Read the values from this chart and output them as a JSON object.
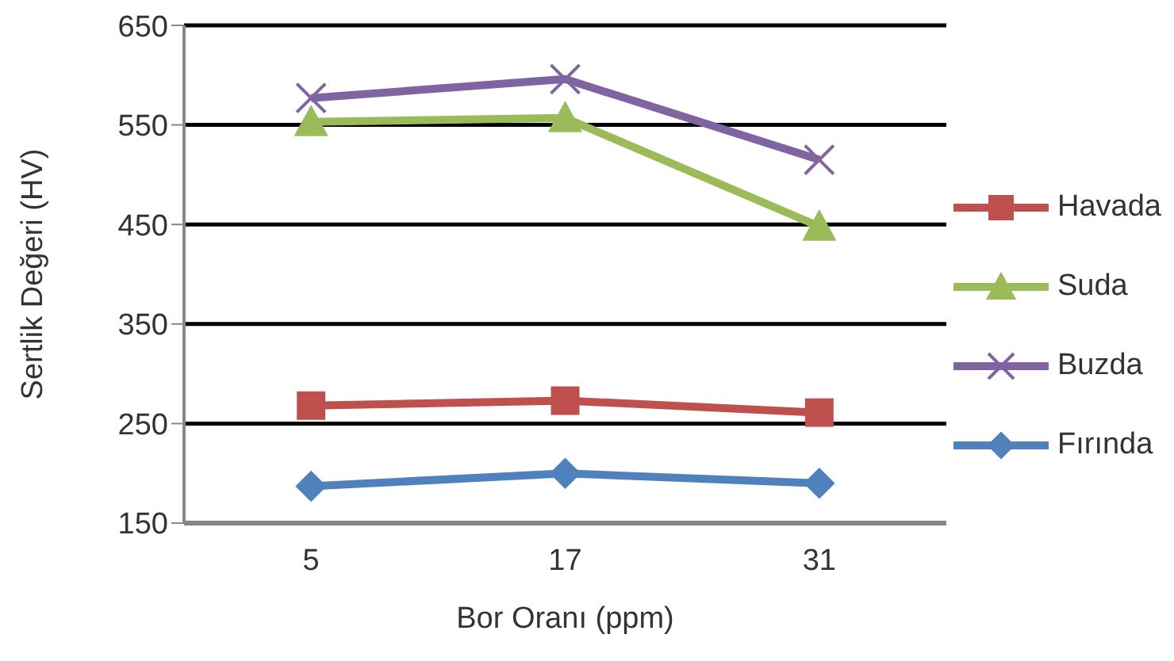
{
  "chart_data": {
    "type": "line",
    "xlabel": "Bor Oranı (ppm)",
    "ylabel": "Sertlik Değeri (HV)",
    "categories": [
      "5",
      "17",
      "31"
    ],
    "ylim": [
      150,
      650
    ],
    "yticks": [
      150,
      250,
      350,
      450,
      550,
      650
    ],
    "grid": "y",
    "legend": "right",
    "series": [
      {
        "name": "Havada",
        "color": "#c0504d",
        "marker": "square",
        "values": [
          268,
          273,
          261
        ]
      },
      {
        "name": "Suda",
        "color": "#9bbb59",
        "marker": "triangle",
        "values": [
          553,
          557,
          448
        ]
      },
      {
        "name": "Buzda",
        "color": "#8064a2",
        "marker": "cross",
        "values": [
          577,
          596,
          515
        ]
      },
      {
        "name": "Fırında",
        "color": "#4f81bd",
        "marker": "diamond",
        "values": [
          187,
          200,
          190
        ]
      }
    ]
  }
}
